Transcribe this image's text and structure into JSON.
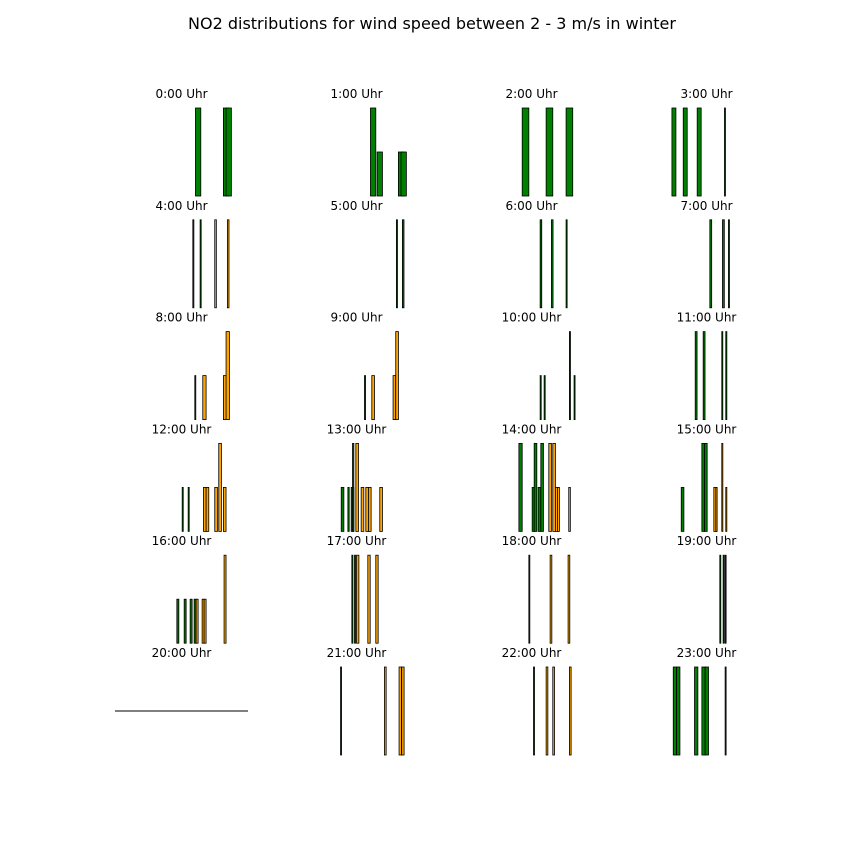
{
  "chart_data": {
    "type": "bar",
    "title": "NO2 distributions for wind speed between 2 - 3 m/s in winter",
    "grid": false,
    "layout": "4 columns x 6 rows of small bar-histogram panels, no axes shown",
    "colors": {
      "green": "#008000",
      "orange": "#ffa500",
      "edge": "#000000",
      "axis_line": "#000000"
    },
    "x_range": [
      0,
      100
    ],
    "y_range": [
      0,
      1
    ],
    "panels": [
      {
        "title": "0:00 Uhr",
        "bars": [
          {
            "x": 60.5,
            "w": 4,
            "h": 1.0,
            "color": "green"
          },
          {
            "x": 81.5,
            "w": 4,
            "h": 1.0,
            "color": "green"
          },
          {
            "x": 83.5,
            "w": 4,
            "h": 1.0,
            "color": "green"
          }
        ]
      },
      {
        "title": "1:00 Uhr",
        "bars": [
          {
            "x": 60.5,
            "w": 4,
            "h": 1.0,
            "color": "green"
          },
          {
            "x": 65.5,
            "w": 4,
            "h": 0.5,
            "color": "green"
          },
          {
            "x": 81.5,
            "w": 4,
            "h": 0.5,
            "color": "green"
          },
          {
            "x": 83.5,
            "w": 4,
            "h": 0.5,
            "color": "green"
          }
        ]
      },
      {
        "title": "2:00 Uhr",
        "bars": [
          {
            "x": 43,
            "w": 5,
            "h": 1.0,
            "color": "green"
          },
          {
            "x": 61,
            "w": 5,
            "h": 1.0,
            "color": "green"
          },
          {
            "x": 76,
            "w": 5,
            "h": 1.0,
            "color": "green"
          }
        ]
      },
      {
        "title": "3:00 Uhr",
        "bars": [
          {
            "x": 24,
            "w": 3,
            "h": 1.0,
            "color": "green"
          },
          {
            "x": 32.5,
            "w": 3,
            "h": 1.0,
            "color": "green"
          },
          {
            "x": 43,
            "w": 3,
            "h": 1.0,
            "color": "green"
          },
          {
            "x": 63.5,
            "w": 0.6,
            "h": 1.0,
            "color": "green"
          }
        ]
      },
      {
        "title": "4:00 Uhr",
        "bars": [
          {
            "x": 58.5,
            "w": 0.8,
            "h": 1.0,
            "color": "green"
          },
          {
            "x": 64,
            "w": 0.8,
            "h": 1.0,
            "color": "green"
          },
          {
            "x": 75,
            "w": 1.2,
            "h": 1.0,
            "color": "orange"
          },
          {
            "x": 84.5,
            "w": 1.2,
            "h": 1.0,
            "color": "orange"
          }
        ]
      },
      {
        "title": "5:00 Uhr",
        "bars": [
          {
            "x": 80,
            "w": 0.8,
            "h": 1.0,
            "color": "green"
          },
          {
            "x": 84.5,
            "w": 1.2,
            "h": 1.0,
            "color": "green"
          }
        ]
      },
      {
        "title": "6:00 Uhr",
        "bars": [
          {
            "x": 56.5,
            "w": 1.2,
            "h": 1.0,
            "color": "green"
          },
          {
            "x": 65,
            "w": 1.2,
            "h": 1.0,
            "color": "green"
          },
          {
            "x": 76,
            "w": 0.8,
            "h": 1.0,
            "color": "green"
          }
        ]
      },
      {
        "title": "7:00 Uhr",
        "bars": [
          {
            "x": 52.5,
            "w": 1.4,
            "h": 1.0,
            "color": "green"
          },
          {
            "x": 62,
            "w": 1.4,
            "h": 1.0,
            "color": "green"
          },
          {
            "x": 66.5,
            "w": 0.6,
            "h": 1.0,
            "color": "green"
          }
        ]
      },
      {
        "title": "8:00 Uhr",
        "bars": [
          {
            "x": 60,
            "w": 0.6,
            "h": 0.5,
            "color": "green"
          },
          {
            "x": 66,
            "w": 2.5,
            "h": 0.5,
            "color": "orange"
          },
          {
            "x": 81.5,
            "w": 2.5,
            "h": 0.5,
            "color": "orange"
          },
          {
            "x": 83.5,
            "w": 2.5,
            "h": 1.0,
            "color": "orange"
          }
        ]
      },
      {
        "title": "9:00 Uhr",
        "bars": [
          {
            "x": 56,
            "w": 0.8,
            "h": 0.5,
            "color": "green"
          },
          {
            "x": 61.5,
            "w": 2,
            "h": 0.5,
            "color": "orange"
          },
          {
            "x": 77.5,
            "w": 2,
            "h": 0.5,
            "color": "orange"
          },
          {
            "x": 79.5,
            "w": 2,
            "h": 1.0,
            "color": "orange"
          }
        ]
      },
      {
        "title": "10:00 Uhr",
        "bars": [
          {
            "x": 56.5,
            "w": 0.8,
            "h": 0.5,
            "color": "green"
          },
          {
            "x": 59.5,
            "w": 0.8,
            "h": 0.5,
            "color": "green"
          },
          {
            "x": 78.5,
            "w": 0.8,
            "h": 1.0,
            "color": "green"
          },
          {
            "x": 82,
            "w": 0.5,
            "h": 0.5,
            "color": "green"
          }
        ]
      },
      {
        "title": "11:00 Uhr",
        "bars": [
          {
            "x": 41.5,
            "w": 1.4,
            "h": 1.0,
            "color": "green"
          },
          {
            "x": 47.5,
            "w": 1.4,
            "h": 1.0,
            "color": "green"
          },
          {
            "x": 61.5,
            "w": 0.5,
            "h": 1.0,
            "color": "green"
          },
          {
            "x": 64.5,
            "w": 0.8,
            "h": 1.0,
            "color": "green"
          }
        ]
      },
      {
        "title": "12:00 Uhr",
        "bars": [
          {
            "x": 50.5,
            "w": 0.8,
            "h": 0.5,
            "color": "green"
          },
          {
            "x": 55,
            "w": 0.8,
            "h": 0.5,
            "color": "green"
          },
          {
            "x": 66.5,
            "w": 2,
            "h": 0.5,
            "color": "orange"
          },
          {
            "x": 68.5,
            "w": 2,
            "h": 0.5,
            "color": "orange"
          },
          {
            "x": 75,
            "w": 2,
            "h": 0.5,
            "color": "orange"
          },
          {
            "x": 78,
            "w": 2,
            "h": 1.0,
            "color": "orange"
          },
          {
            "x": 81.5,
            "w": 2,
            "h": 0.5,
            "color": "orange"
          }
        ]
      },
      {
        "title": "13:00 Uhr",
        "bars": [
          {
            "x": 38.5,
            "w": 2,
            "h": 0.5,
            "color": "green"
          },
          {
            "x": 43.5,
            "w": 1,
            "h": 0.5,
            "color": "green"
          },
          {
            "x": 46,
            "w": 2,
            "h": 0.5,
            "color": "green"
          },
          {
            "x": 47,
            "w": 1,
            "h": 1.0,
            "color": "green"
          },
          {
            "x": 49.5,
            "w": 2,
            "h": 1.0,
            "color": "orange"
          },
          {
            "x": 53.5,
            "w": 2,
            "h": 0.5,
            "color": "orange"
          },
          {
            "x": 57,
            "w": 2,
            "h": 0.5,
            "color": "orange"
          },
          {
            "x": 59,
            "w": 2,
            "h": 0.5,
            "color": "orange"
          },
          {
            "x": 67.5,
            "w": 2,
            "h": 0.5,
            "color": "orange"
          }
        ]
      },
      {
        "title": "14:00 Uhr",
        "bars": [
          {
            "x": 40.5,
            "w": 2.5,
            "h": 1.0,
            "color": "green"
          },
          {
            "x": 50.5,
            "w": 2,
            "h": 0.5,
            "color": "green"
          },
          {
            "x": 52,
            "w": 2,
            "h": 1.0,
            "color": "green"
          },
          {
            "x": 55,
            "w": 2,
            "h": 0.5,
            "color": "green"
          },
          {
            "x": 57,
            "w": 2,
            "h": 1.0,
            "color": "green"
          },
          {
            "x": 63,
            "w": 2,
            "h": 1.0,
            "color": "orange"
          },
          {
            "x": 66,
            "w": 2,
            "h": 1.0,
            "color": "orange"
          },
          {
            "x": 68,
            "w": 2,
            "h": 0.5,
            "color": "orange"
          },
          {
            "x": 69.5,
            "w": 1.5,
            "h": 0.5,
            "color": "orange"
          },
          {
            "x": 78,
            "w": 1.2,
            "h": 0.5,
            "color": "orange"
          }
        ]
      },
      {
        "title": "15:00 Uhr",
        "bars": [
          {
            "x": 31,
            "w": 2,
            "h": 0.5,
            "color": "green"
          },
          {
            "x": 46.5,
            "w": 2,
            "h": 1.0,
            "color": "green"
          },
          {
            "x": 48.5,
            "w": 2,
            "h": 1.0,
            "color": "green"
          },
          {
            "x": 55.5,
            "w": 2,
            "h": 0.5,
            "color": "orange"
          },
          {
            "x": 57,
            "w": 1,
            "h": 0.5,
            "color": "orange"
          },
          {
            "x": 61.5,
            "w": 0.8,
            "h": 1.0,
            "color": "orange"
          },
          {
            "x": 64.5,
            "w": 0.8,
            "h": 0.5,
            "color": "orange"
          }
        ]
      },
      {
        "title": "16:00 Uhr",
        "bars": [
          {
            "x": 46.5,
            "w": 1.5,
            "h": 0.5,
            "color": "green"
          },
          {
            "x": 52,
            "w": 1.5,
            "h": 0.5,
            "color": "green"
          },
          {
            "x": 56.5,
            "w": 1.5,
            "h": 0.5,
            "color": "green"
          },
          {
            "x": 59.5,
            "w": 1.5,
            "h": 0.5,
            "color": "green"
          },
          {
            "x": 61,
            "w": 1.5,
            "h": 0.5,
            "color": "orange"
          },
          {
            "x": 65.5,
            "w": 1.5,
            "h": 0.5,
            "color": "orange"
          },
          {
            "x": 67,
            "w": 1.5,
            "h": 0.5,
            "color": "orange"
          },
          {
            "x": 82,
            "w": 1.5,
            "h": 1.0,
            "color": "orange"
          }
        ]
      },
      {
        "title": "17:00 Uhr",
        "bars": [
          {
            "x": 46.5,
            "w": 0.8,
            "h": 1.0,
            "color": "green"
          },
          {
            "x": 48.5,
            "w": 0.5,
            "h": 1.0,
            "color": "green"
          },
          {
            "x": 50,
            "w": 1.8,
            "h": 1.0,
            "color": "orange"
          },
          {
            "x": 58.5,
            "w": 1.8,
            "h": 1.0,
            "color": "orange"
          },
          {
            "x": 64.5,
            "w": 1.8,
            "h": 1.0,
            "color": "orange"
          }
        ]
      },
      {
        "title": "18:00 Uhr",
        "bars": [
          {
            "x": 48,
            "w": 0.5,
            "h": 1.0,
            "color": "green"
          },
          {
            "x": 64,
            "w": 1.3,
            "h": 1.0,
            "color": "orange"
          },
          {
            "x": 77.5,
            "w": 1.3,
            "h": 1.0,
            "color": "orange"
          }
        ]
      },
      {
        "title": "19:00 Uhr",
        "bars": [
          {
            "x": 60,
            "w": 0.5,
            "h": 1.0,
            "color": "green"
          },
          {
            "x": 62.5,
            "w": 0.5,
            "h": 1.0,
            "color": "green"
          },
          {
            "x": 64,
            "w": 0.4,
            "h": 1.0,
            "color": "green"
          }
        ]
      },
      {
        "title": "20:00 Uhr",
        "bars": [],
        "baseline_only": true
      },
      {
        "title": "21:00 Uhr",
        "bars": [
          {
            "x": 38,
            "w": 0.5,
            "h": 1.0,
            "color": "green"
          },
          {
            "x": 71,
            "w": 1.3,
            "h": 1.0,
            "color": "orange"
          },
          {
            "x": 82,
            "w": 1.8,
            "h": 1.0,
            "color": "orange"
          },
          {
            "x": 84,
            "w": 1.8,
            "h": 1.0,
            "color": "orange"
          }
        ]
      },
      {
        "title": "22:00 Uhr",
        "bars": [
          {
            "x": 51.5,
            "w": 0.5,
            "h": 1.0,
            "color": "green"
          },
          {
            "x": 61,
            "w": 1.3,
            "h": 1.0,
            "color": "orange"
          },
          {
            "x": 66,
            "w": 1.3,
            "h": 1.0,
            "color": "orange"
          },
          {
            "x": 78.5,
            "w": 1.3,
            "h": 1.0,
            "color": "orange"
          }
        ]
      },
      {
        "title": "23:00 Uhr",
        "bars": [
          {
            "x": 25,
            "w": 2.5,
            "h": 1.0,
            "color": "green"
          },
          {
            "x": 27.5,
            "w": 2.5,
            "h": 1.0,
            "color": "green"
          },
          {
            "x": 41,
            "w": 2.5,
            "h": 1.0,
            "color": "green"
          },
          {
            "x": 46.5,
            "w": 2.5,
            "h": 1.0,
            "color": "green"
          },
          {
            "x": 49,
            "w": 2.5,
            "h": 1.0,
            "color": "green"
          },
          {
            "x": 64,
            "w": 0.6,
            "h": 1.0,
            "color": "green"
          }
        ]
      }
    ]
  }
}
